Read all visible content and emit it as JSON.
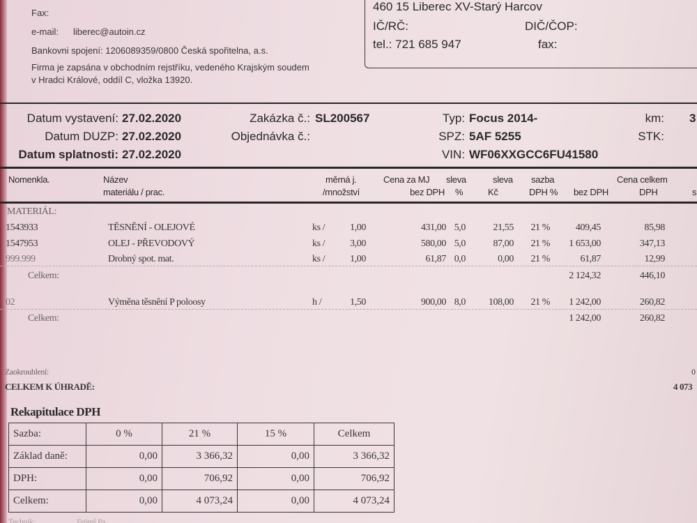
{
  "supplier": {
    "fax_label": "Fax:",
    "email_label": "e-mail:",
    "email": "liberec@autoin.cz",
    "bank": "Bankovni spojení: 1206089359/0800 Česká spořitelna, a.s.",
    "register_line1": "Firma je zapsána v obchodním rejstříku, vedeného Krajským soudem",
    "register_line2": "v Hradci Králové, oddíl C, vložka 13920."
  },
  "customer": {
    "address": "460 15  Liberec XV-Starý Harcov",
    "ic_label": "IČ/RČ:",
    "dic_label": "DIČ/ČOP:",
    "tel": "tel.: 721 685 947",
    "fax_label": "fax:"
  },
  "header": {
    "datum_vystaveni_label": "Datum vystavení:",
    "datum_vystaveni": "27.02.2020",
    "datum_duzp_label": "Datum DUZP:",
    "datum_duzp": "27.02.2020",
    "datum_splatnosti_label": "Datum splatnosti:",
    "datum_splatnosti": "27.02.2020",
    "zakazka_label": "Zakázka č.:",
    "zakazka": "SL200567",
    "objednavka_label": "Objednávka č.:",
    "typ_label": "Typ:",
    "typ": "Focus 2014-",
    "spz_label": "SPZ:",
    "spz": "5AF 5255",
    "vin_label": "VIN:",
    "vin": "WF06XXGCC6FU41580",
    "km_label": "km:",
    "km": "3",
    "stk_label": "STK:"
  },
  "columns": {
    "nomenkla": "Nomenkla.",
    "nazev1": "Název",
    "nazev2": "materiálu / prac.",
    "mj1": "měrná j.",
    "mj2": "/množství",
    "cena1": "Cena za MJ",
    "cena2": "bez DPH",
    "sleva1": "sleva",
    "sleva2": "%",
    "slevakc1": "sleva",
    "slevakc2": "Kč",
    "sazba1": "sazba",
    "sazba2": "DPH %",
    "celkem1": "Cena celkem",
    "bezdph": "bez DPH",
    "dph": "DPH",
    "cut": "s"
  },
  "material_label": "MATERIÁL:",
  "rows": [
    {
      "code": "1543933",
      "name": "TĚSNĚNÍ - OLEJOVÉ",
      "unit": "ks /",
      "qty": "1,00",
      "price": "431,00",
      "disc": "5,0",
      "disc_kc": "21,55",
      "vat": "21 %",
      "net": "409,45",
      "tax": "85,98"
    },
    {
      "code": "1547953",
      "name": "OLEJ - PŘEVODOVÝ",
      "unit": "ks /",
      "qty": "3,00",
      "price": "580,00",
      "disc": "5,0",
      "disc_kc": "87,00",
      "vat": "21 %",
      "net": "1 653,00",
      "tax": "347,13"
    },
    {
      "code": "999.999",
      "name": "Drobný spot. mat.",
      "unit": "ks /",
      "qty": "1,00",
      "price": "61,87",
      "disc": "0,0",
      "disc_kc": "0,00",
      "vat": "21 %",
      "net": "61,87",
      "tax": "12,99"
    },
    {
      "code": "02",
      "name": "Výměna těsnění P poloosy",
      "unit": "h /",
      "qty": "1,50",
      "price": "900,00",
      "disc": "8,0",
      "disc_kc": "108,00",
      "vat": "21 %",
      "net": "1 242,00",
      "tax": "260,82"
    }
  ],
  "subtotals": [
    {
      "label": "Celkem:",
      "net": "2 124,32",
      "tax": "446,10"
    },
    {
      "label": "Celkem:",
      "net": "1 242,00",
      "tax": "260,82"
    }
  ],
  "rounding_label": "Zaokrouhlení:",
  "rounding": "0",
  "total_label": "CELKEM K ÚHRADĚ:",
  "total": "4 073",
  "recap": {
    "title": "Rekapitulace DPH",
    "header": [
      "Sazba:",
      "0 %",
      "21 %",
      "15 %",
      "Celkem"
    ],
    "rows": [
      [
        "Základ daně:",
        "0,00",
        "3 366,32",
        "0,00",
        "3 366,32"
      ],
      [
        "DPH:",
        "0,00",
        "706,92",
        "0,00",
        "706,92"
      ],
      [
        "Celkem:",
        "0,00",
        "4 073,24",
        "0,00",
        "4 073,24"
      ]
    ]
  },
  "footer": {
    "technik_label": "Technik:",
    "technik": "Fröml Pa..."
  }
}
